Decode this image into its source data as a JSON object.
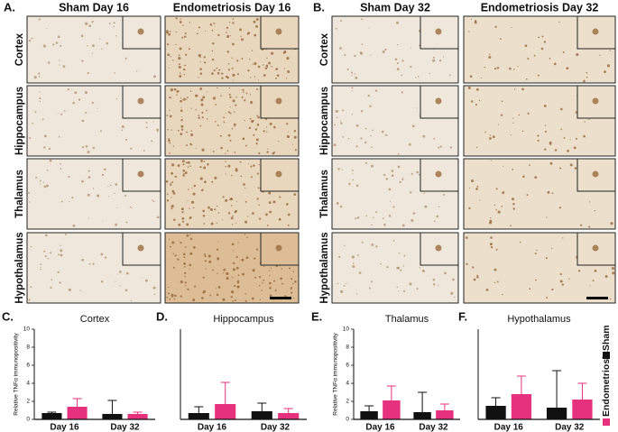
{
  "panels": [
    {
      "label": "A.",
      "columns": [
        "Sham Day 16",
        "Endometriosis Day 16"
      ],
      "rows": [
        "Cortex",
        "Hippocampus",
        "Thalamus",
        "Hypothalamus"
      ]
    },
    {
      "label": "B.",
      "columns": [
        "Sham Day 32",
        "Endometriosis Day 32"
      ],
      "rows": [
        "Cortex",
        "Hippocampus",
        "Thalamus",
        "Hypothalamus"
      ]
    }
  ],
  "legend": {
    "items": [
      {
        "name": "Sham",
        "color": "#111111"
      },
      {
        "name": "Endometriosis",
        "color": "#e6317e"
      }
    ]
  },
  "chart_data": [
    {
      "type": "bar",
      "panel": "C.",
      "title": "Cortex",
      "y_label": "Relative TNFα immunopositivity",
      "categories": [
        "Day 16",
        "Day 32"
      ],
      "series": [
        {
          "values": [
            0.7,
            0.6
          ],
          "errors": [
            0.1,
            1.5
          ]
        },
        {
          "values": [
            1.4,
            0.6
          ],
          "errors": [
            0.9,
            0.2
          ]
        }
      ],
      "ylim": [
        0,
        10
      ],
      "yticks": [
        0,
        2,
        4,
        6,
        8,
        10
      ]
    },
    {
      "type": "bar",
      "panel": "D.",
      "title": "Hippocampus",
      "categories": [
        "Day 16",
        "Day 32"
      ],
      "series": [
        {
          "values": [
            0.7,
            0.9
          ],
          "errors": [
            0.7,
            0.9
          ]
        },
        {
          "values": [
            1.7,
            0.7
          ],
          "errors": [
            2.4,
            0.5
          ]
        }
      ],
      "ylim": [
        0,
        10
      ]
    },
    {
      "type": "bar",
      "panel": "E.",
      "title": "Thalamus",
      "y_label": "Relative TNFα immunopositivity",
      "categories": [
        "Day 16",
        "Day 32"
      ],
      "series": [
        {
          "values": [
            0.9,
            0.8
          ],
          "errors": [
            0.6,
            2.2
          ]
        },
        {
          "values": [
            2.1,
            1.0
          ],
          "errors": [
            1.6,
            0.7
          ]
        }
      ],
      "ylim": [
        0,
        10
      ],
      "yticks": [
        0,
        2,
        4,
        6,
        8,
        10
      ]
    },
    {
      "type": "bar",
      "panel": "F.",
      "title": "Hypothalamus",
      "categories": [
        "Day 16",
        "Day 32"
      ],
      "series": [
        {
          "values": [
            1.5,
            1.3
          ],
          "errors": [
            0.9,
            4.1
          ]
        },
        {
          "values": [
            2.8,
            2.2
          ],
          "errors": [
            2.0,
            1.8
          ]
        }
      ],
      "ylim": [
        0,
        10
      ]
    }
  ]
}
